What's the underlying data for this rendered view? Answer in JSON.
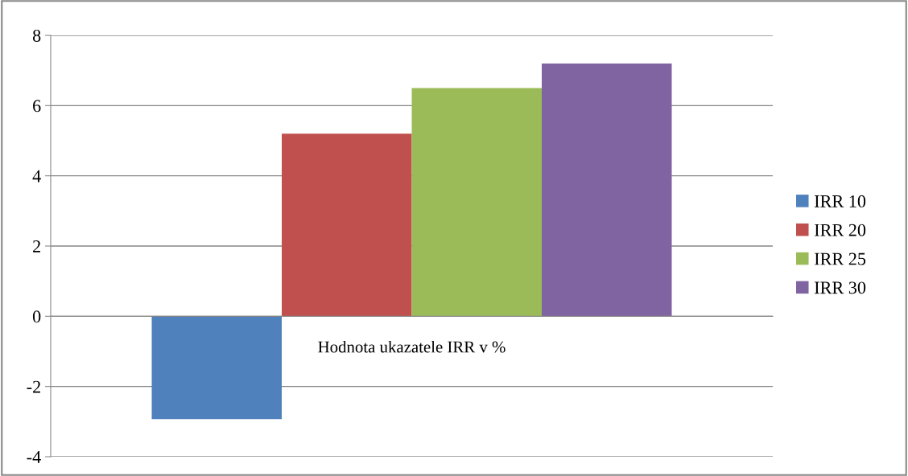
{
  "chart_data": {
    "type": "bar",
    "categories": [
      "Hodnota ukazatele IRR v %"
    ],
    "series": [
      {
        "name": "IRR 10",
        "color": "#4f81bd",
        "values": [
          -2.93
        ]
      },
      {
        "name": "IRR 20",
        "color": "#c0504d",
        "values": [
          5.2
        ]
      },
      {
        "name": "IRR 25",
        "color": "#9bbb59",
        "values": [
          6.5
        ]
      },
      {
        "name": "IRR 30",
        "color": "#8064a2",
        "values": [
          7.2
        ]
      }
    ],
    "ylim": [
      -4,
      8
    ],
    "yticks": [
      -4,
      -2,
      0,
      2,
      4,
      6,
      8
    ],
    "grid": "y",
    "legend": "right"
  }
}
